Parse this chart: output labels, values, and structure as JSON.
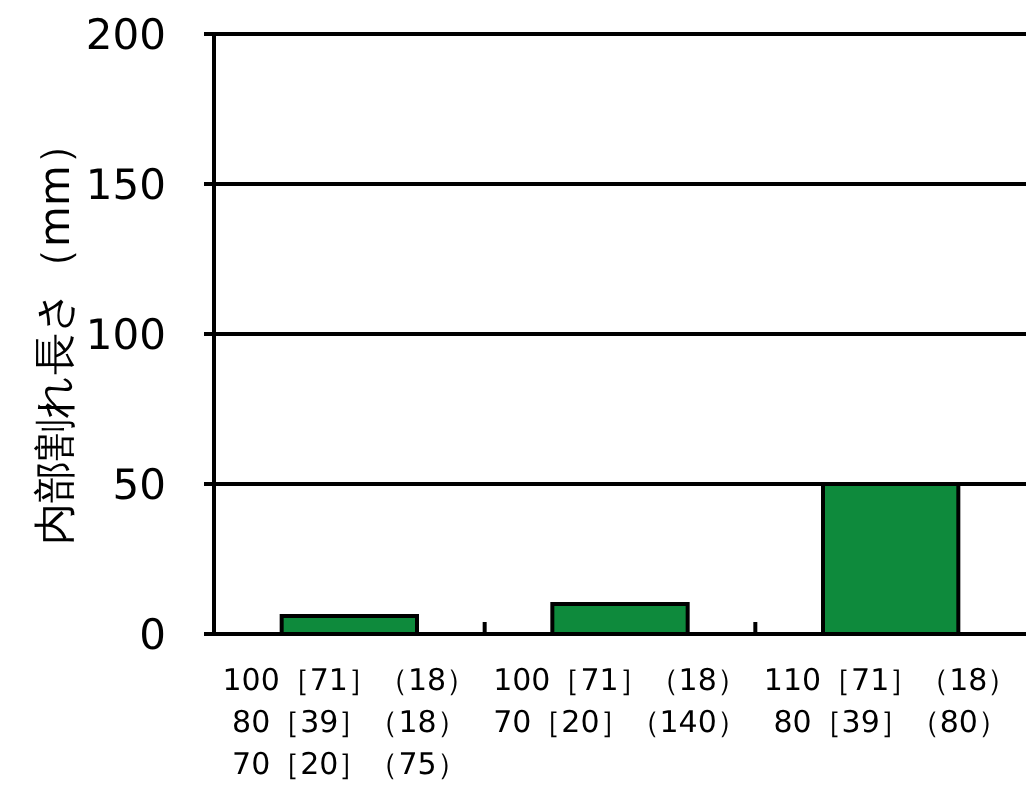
{
  "chart_data": {
    "type": "bar",
    "ylabel": "内部割れ長さ（mm）",
    "categories": [
      "100［71］（18）\n80［39］（18）\n70［20］（75）",
      "100［71］（18）\n70［20］（140）",
      "110［71］（18）\n80［39］（80）"
    ],
    "values": [
      6,
      10,
      50
    ],
    "color": "#0e8a3c",
    "ylim": [
      0,
      200
    ],
    "yticks": [
      0,
      50,
      100,
      150,
      200
    ],
    "grid": "y"
  }
}
